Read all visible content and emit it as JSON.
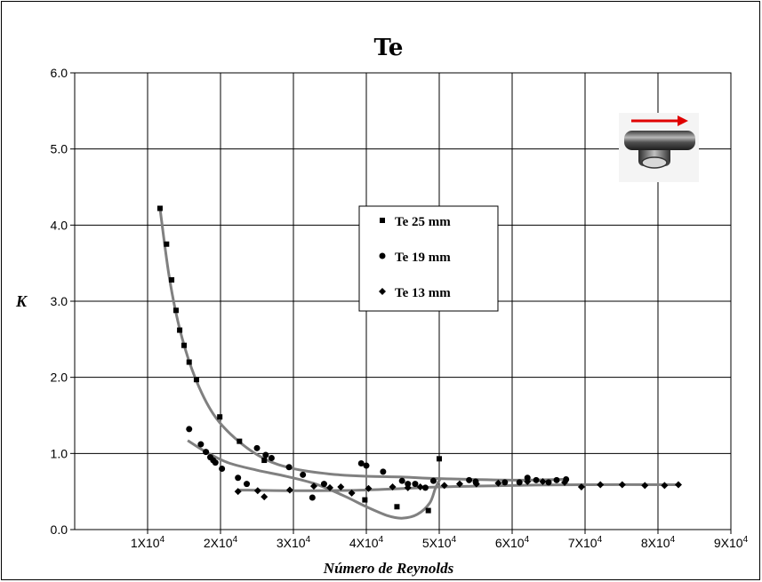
{
  "chart_data": {
    "type": "scatter",
    "title": "Te",
    "xlabel": "Número de Reynolds",
    "ylabel": "K",
    "xlim": [
      0,
      90000
    ],
    "ylim": [
      0,
      6
    ],
    "y_ticks": [
      "0.0",
      "1.0",
      "2.0",
      "3.0",
      "4.0",
      "5.0",
      "6.0"
    ],
    "x_ticks": [
      {
        "value": 10000,
        "base": "1X10",
        "exp": "4"
      },
      {
        "value": 20000,
        "base": "2X10",
        "exp": "4"
      },
      {
        "value": 30000,
        "base": "3X10",
        "exp": "4"
      },
      {
        "value": 40000,
        "base": "4X10",
        "exp": "4"
      },
      {
        "value": 50000,
        "base": "5X10",
        "exp": "4"
      },
      {
        "value": 60000,
        "base": "6X10",
        "exp": "4"
      },
      {
        "value": 70000,
        "base": "7X10",
        "exp": "4"
      },
      {
        "value": 80000,
        "base": "8X10",
        "exp": "4"
      },
      {
        "value": 90000,
        "base": "9X10",
        "exp": "4"
      }
    ],
    "grid": true,
    "legend_position": "center",
    "series": [
      {
        "name": "Te 25 mm",
        "marker": "square",
        "points": [
          [
            11700,
            4.22
          ],
          [
            12600,
            3.75
          ],
          [
            13300,
            3.28
          ],
          [
            13900,
            2.88
          ],
          [
            14400,
            2.62
          ],
          [
            15000,
            2.42
          ],
          [
            15700,
            2.2
          ],
          [
            16700,
            1.97
          ],
          [
            19900,
            1.48
          ],
          [
            22600,
            1.16
          ],
          [
            26000,
            0.91
          ],
          [
            39800,
            0.39
          ],
          [
            44200,
            0.3
          ],
          [
            48500,
            0.25
          ],
          [
            50000,
            0.93
          ]
        ],
        "trend": [
          [
            11700,
            4.22
          ],
          [
            13000,
            3.3
          ],
          [
            14500,
            2.6
          ],
          [
            16500,
            2.0
          ],
          [
            19000,
            1.52
          ],
          [
            22000,
            1.2
          ],
          [
            26000,
            0.93
          ],
          [
            30000,
            0.8
          ],
          [
            35000,
            0.73
          ],
          [
            40000,
            0.7
          ],
          [
            45000,
            0.69
          ],
          [
            50000,
            0.67
          ],
          [
            60000,
            0.65
          ],
          [
            67000,
            0.66
          ]
        ]
      },
      {
        "name": "Te 19 mm",
        "marker": "circle",
        "points": [
          [
            15700,
            1.32
          ],
          [
            17300,
            1.12
          ],
          [
            18000,
            1.02
          ],
          [
            18600,
            0.95
          ],
          [
            19000,
            0.91
          ],
          [
            19300,
            0.88
          ],
          [
            20200,
            0.8
          ],
          [
            22400,
            0.68
          ],
          [
            23600,
            0.6
          ],
          [
            25000,
            1.07
          ],
          [
            26200,
            0.98
          ],
          [
            27000,
            0.94
          ],
          [
            29400,
            0.82
          ],
          [
            31300,
            0.72
          ],
          [
            32600,
            0.42
          ],
          [
            34200,
            0.6
          ],
          [
            39300,
            0.87
          ],
          [
            40000,
            0.84
          ],
          [
            42300,
            0.76
          ],
          [
            44900,
            0.64
          ],
          [
            45700,
            0.6
          ],
          [
            46700,
            0.6
          ],
          [
            48100,
            0.55
          ],
          [
            49200,
            0.64
          ],
          [
            54100,
            0.65
          ],
          [
            55000,
            0.63
          ],
          [
            59000,
            0.62
          ],
          [
            61000,
            0.62
          ],
          [
            62100,
            0.68
          ],
          [
            63300,
            0.65
          ],
          [
            65000,
            0.62
          ],
          [
            66100,
            0.65
          ],
          [
            67400,
            0.66
          ]
        ],
        "trend": [
          [
            15500,
            1.17
          ],
          [
            18000,
            1.02
          ],
          [
            21000,
            0.88
          ],
          [
            25000,
            0.78
          ],
          [
            29000,
            0.7
          ],
          [
            33000,
            0.6
          ],
          [
            37000,
            0.44
          ],
          [
            40000,
            0.3
          ],
          [
            43000,
            0.18
          ],
          [
            45000,
            0.15
          ],
          [
            47000,
            0.2
          ],
          [
            48700,
            0.35
          ],
          [
            49500,
            0.55
          ],
          [
            50200,
            0.68
          ]
        ]
      },
      {
        "name": "Te 13 mm",
        "marker": "diamond",
        "points": [
          [
            22400,
            0.5
          ],
          [
            25100,
            0.51
          ],
          [
            26000,
            0.43
          ],
          [
            29500,
            0.52
          ],
          [
            32800,
            0.57
          ],
          [
            35000,
            0.55
          ],
          [
            36500,
            0.56
          ],
          [
            38000,
            0.48
          ],
          [
            40300,
            0.54
          ],
          [
            43600,
            0.56
          ],
          [
            45700,
            0.55
          ],
          [
            47400,
            0.56
          ],
          [
            50700,
            0.58
          ],
          [
            52800,
            0.6
          ],
          [
            55100,
            0.6
          ],
          [
            58100,
            0.61
          ],
          [
            62100,
            0.63
          ],
          [
            64200,
            0.63
          ],
          [
            67200,
            0.62
          ],
          [
            69500,
            0.56
          ],
          [
            72100,
            0.59
          ],
          [
            75100,
            0.59
          ],
          [
            78200,
            0.58
          ],
          [
            80900,
            0.58
          ],
          [
            82800,
            0.59
          ]
        ],
        "trend": [
          [
            22400,
            0.52
          ],
          [
            30000,
            0.51
          ],
          [
            40000,
            0.52
          ],
          [
            50000,
            0.56
          ],
          [
            60000,
            0.58
          ],
          [
            70000,
            0.59
          ],
          [
            83000,
            0.59
          ]
        ]
      }
    ]
  }
}
